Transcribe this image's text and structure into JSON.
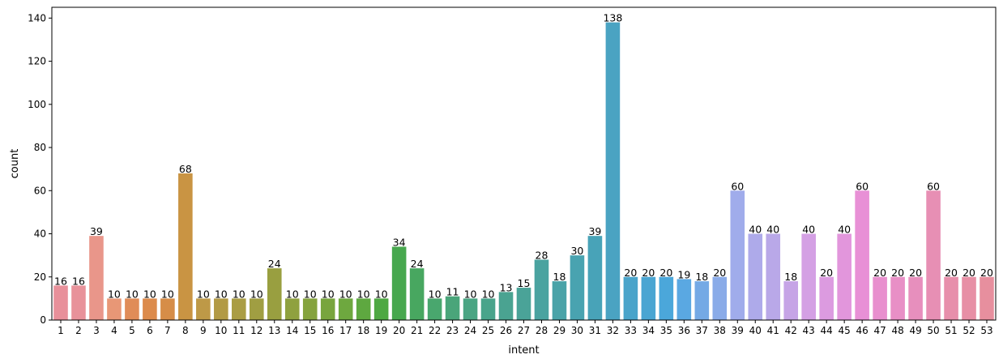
{
  "chart_data": {
    "type": "bar",
    "xlabel": "intent",
    "ylabel": "count",
    "ylim": [
      0,
      145
    ],
    "yticks": [
      0,
      20,
      40,
      60,
      80,
      100,
      120,
      140
    ],
    "categories": [
      "1",
      "2",
      "3",
      "4",
      "5",
      "6",
      "7",
      "8",
      "9",
      "10",
      "11",
      "12",
      "13",
      "14",
      "15",
      "16",
      "17",
      "18",
      "19",
      "20",
      "21",
      "22",
      "23",
      "24",
      "25",
      "26",
      "27",
      "28",
      "29",
      "30",
      "31",
      "32",
      "33",
      "34",
      "35",
      "36",
      "37",
      "38",
      "39",
      "40",
      "41",
      "42",
      "43",
      "44",
      "45",
      "46",
      "47",
      "48",
      "49",
      "50",
      "51",
      "52",
      "53"
    ],
    "values": [
      16,
      16,
      39,
      10,
      10,
      10,
      10,
      68,
      10,
      10,
      10,
      10,
      24,
      10,
      10,
      10,
      10,
      10,
      10,
      34,
      24,
      10,
      11,
      10,
      10,
      13,
      15,
      28,
      18,
      30,
      39,
      138,
      20,
      20,
      20,
      19,
      18,
      20,
      60,
      40,
      40,
      18,
      40,
      20,
      40,
      60,
      20,
      20,
      20,
      60,
      20,
      20,
      20
    ],
    "data_labels": true,
    "grid": false,
    "colors": [
      "#e8909a",
      "#e8929a",
      "#e9968a",
      "#e89776",
      "#e08c58",
      "#dc8b4c",
      "#d68d48",
      "#c99443",
      "#be9947",
      "#b29a45",
      "#aa9d44",
      "#a09e42",
      "#999f40",
      "#8fa13f",
      "#85a33e",
      "#78a53e",
      "#6ea83f",
      "#5ea840",
      "#4ea842",
      "#47a84e",
      "#48a760",
      "#49a76e",
      "#4aa57a",
      "#4aa583",
      "#49a48b",
      "#4aa391",
      "#4aa398",
      "#4aa3a0",
      "#4aa3a8",
      "#49a3b0",
      "#48a3b8",
      "#4aa3c2",
      "#4aa4ca",
      "#4aa5d2",
      "#4ba7da",
      "#5aa8e2",
      "#74a9e5",
      "#8aabe8",
      "#a0aceb",
      "#aeaaea",
      "#b9a8e8",
      "#c6a4e6",
      "#d4a0e4",
      "#dc9be0",
      "#e296dc",
      "#e890d6",
      "#e88fce",
      "#e88fc6",
      "#e78fbd",
      "#e78fb4",
      "#e78fab",
      "#e78fa5",
      "#e78f9e"
    ]
  }
}
